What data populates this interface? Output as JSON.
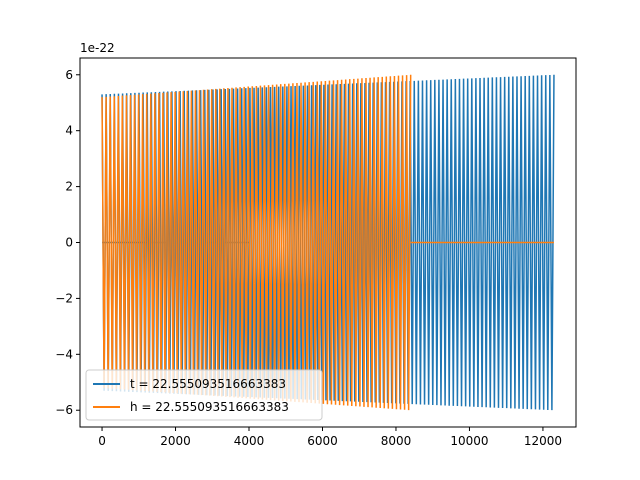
{
  "chart_data": {
    "type": "line",
    "title": "",
    "xlabel": "",
    "ylabel": "",
    "y_offset_label": "1e-22",
    "xlim": [
      -600,
      12900
    ],
    "ylim": [
      -6.6,
      6.6
    ],
    "xticks": [
      0,
      2000,
      4000,
      6000,
      8000,
      10000,
      12000
    ],
    "xtick_labels": [
      "0",
      "2000",
      "4000",
      "6000",
      "8000",
      "10000",
      "12000"
    ],
    "yticks": [
      -6,
      -4,
      -2,
      0,
      2,
      4,
      6
    ],
    "ytick_labels": [
      "−6",
      "−4",
      "−2",
      "0",
      "2",
      "4",
      "6"
    ],
    "grid": false,
    "legend_position": "lower-left",
    "series": [
      {
        "name": "t = 22.555093516663383",
        "color": "#1f77b4",
        "x_start": 0,
        "x_end": 12300,
        "approx_cycles": 110,
        "amplitude_start": 5.3,
        "amplitude_end": 6.0,
        "flat_zero_segment": [
          0,
          4000
        ]
      },
      {
        "name": "h = 22.555093516663383",
        "color": "#ff7f0e",
        "x_start": 0,
        "x_end": 8400,
        "approx_cycles": 76,
        "amplitude_start": 5.2,
        "amplitude_end": 6.0,
        "flat_zero_segment": [
          8400,
          12300
        ]
      }
    ]
  }
}
